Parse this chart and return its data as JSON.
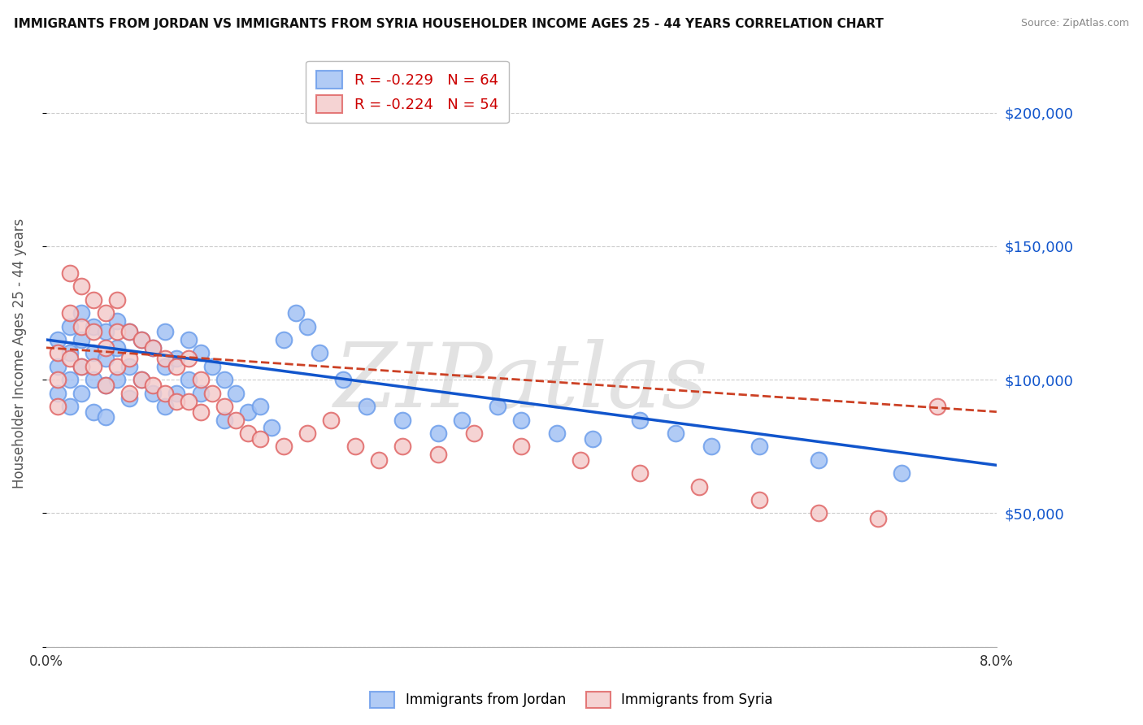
{
  "title": "IMMIGRANTS FROM JORDAN VS IMMIGRANTS FROM SYRIA HOUSEHOLDER INCOME AGES 25 - 44 YEARS CORRELATION CHART",
  "source": "Source: ZipAtlas.com",
  "ylabel": "Householder Income Ages 25 - 44 years",
  "xlim": [
    0.0,
    0.08
  ],
  "ylim": [
    0,
    220000
  ],
  "yticks": [
    0,
    50000,
    100000,
    150000,
    200000
  ],
  "ytick_labels": [
    "",
    "$50,000",
    "$100,000",
    "$150,000",
    "$200,000"
  ],
  "r_jordan": -0.229,
  "n_jordan": 64,
  "r_syria": -0.224,
  "n_syria": 54,
  "color_jordan": "#a4c2f4",
  "color_syria": "#f4cccc",
  "edge_jordan": "#6d9eeb",
  "edge_syria": "#e06666",
  "line_color_jordan": "#1155cc",
  "line_color_syria": "#cc4125",
  "watermark": "ZIPatlas",
  "watermark_color": "#d0d0d0",
  "background_color": "#ffffff",
  "jordan_x": [
    0.001,
    0.001,
    0.001,
    0.002,
    0.002,
    0.002,
    0.002,
    0.003,
    0.003,
    0.003,
    0.003,
    0.004,
    0.004,
    0.004,
    0.004,
    0.005,
    0.005,
    0.005,
    0.005,
    0.006,
    0.006,
    0.006,
    0.007,
    0.007,
    0.007,
    0.008,
    0.008,
    0.009,
    0.009,
    0.01,
    0.01,
    0.01,
    0.011,
    0.011,
    0.012,
    0.012,
    0.013,
    0.013,
    0.014,
    0.015,
    0.015,
    0.016,
    0.017,
    0.018,
    0.019,
    0.02,
    0.021,
    0.022,
    0.023,
    0.025,
    0.027,
    0.03,
    0.033,
    0.035,
    0.038,
    0.04,
    0.043,
    0.046,
    0.05,
    0.053,
    0.056,
    0.06,
    0.065,
    0.072
  ],
  "jordan_y": [
    115000,
    105000,
    95000,
    120000,
    110000,
    100000,
    90000,
    125000,
    115000,
    105000,
    95000,
    120000,
    110000,
    100000,
    88000,
    118000,
    108000,
    98000,
    86000,
    122000,
    112000,
    100000,
    118000,
    105000,
    93000,
    115000,
    100000,
    112000,
    95000,
    118000,
    105000,
    90000,
    108000,
    95000,
    115000,
    100000,
    110000,
    95000,
    105000,
    100000,
    85000,
    95000,
    88000,
    90000,
    82000,
    115000,
    125000,
    120000,
    110000,
    100000,
    90000,
    85000,
    80000,
    85000,
    90000,
    85000,
    80000,
    78000,
    85000,
    80000,
    75000,
    75000,
    70000,
    65000
  ],
  "syria_x": [
    0.001,
    0.001,
    0.001,
    0.002,
    0.002,
    0.002,
    0.003,
    0.003,
    0.003,
    0.004,
    0.004,
    0.004,
    0.005,
    0.005,
    0.005,
    0.006,
    0.006,
    0.006,
    0.007,
    0.007,
    0.007,
    0.008,
    0.008,
    0.009,
    0.009,
    0.01,
    0.01,
    0.011,
    0.011,
    0.012,
    0.012,
    0.013,
    0.013,
    0.014,
    0.015,
    0.016,
    0.017,
    0.018,
    0.02,
    0.022,
    0.024,
    0.026,
    0.028,
    0.03,
    0.033,
    0.036,
    0.04,
    0.045,
    0.05,
    0.055,
    0.06,
    0.065,
    0.07,
    0.075
  ],
  "syria_y": [
    110000,
    100000,
    90000,
    140000,
    125000,
    108000,
    135000,
    120000,
    105000,
    130000,
    118000,
    105000,
    125000,
    112000,
    98000,
    130000,
    118000,
    105000,
    118000,
    108000,
    95000,
    115000,
    100000,
    112000,
    98000,
    108000,
    95000,
    105000,
    92000,
    108000,
    92000,
    100000,
    88000,
    95000,
    90000,
    85000,
    80000,
    78000,
    75000,
    80000,
    85000,
    75000,
    70000,
    75000,
    72000,
    80000,
    75000,
    70000,
    65000,
    60000,
    55000,
    50000,
    48000,
    90000
  ],
  "jordan_line_x0": 0.0,
  "jordan_line_x1": 0.08,
  "jordan_line_y0": 115000,
  "jordan_line_y1": 68000,
  "syria_line_x0": 0.0,
  "syria_line_x1": 0.08,
  "syria_line_y0": 112000,
  "syria_line_y1": 88000
}
